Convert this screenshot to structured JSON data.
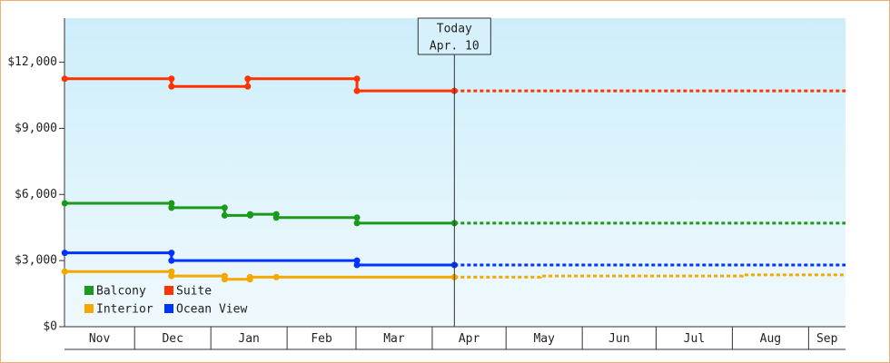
{
  "chart_data": {
    "type": "step-line",
    "xlim": [
      1.5,
      319
    ],
    "xticks": [
      {
        "value": 0,
        "label": "Nov"
      },
      {
        "value": 30,
        "label": "Dec"
      },
      {
        "value": 61,
        "label": "Jan"
      },
      {
        "value": 92,
        "label": "Feb"
      },
      {
        "value": 120,
        "label": "Mar"
      },
      {
        "value": 151,
        "label": "Apr"
      },
      {
        "value": 181,
        "label": "May"
      },
      {
        "value": 212,
        "label": "Jun"
      },
      {
        "value": 242,
        "label": "Jul"
      },
      {
        "value": 273,
        "label": "Aug"
      },
      {
        "value": 304,
        "label": "Sep"
      }
    ],
    "ylim": [
      0,
      14000
    ],
    "yticks": [
      {
        "value": 0,
        "label": "$0"
      },
      {
        "value": 3000,
        "label": "$3,000"
      },
      {
        "value": 6000,
        "label": "$6,000"
      },
      {
        "value": 9000,
        "label": "$9,000"
      },
      {
        "value": 12000,
        "label": "$12,000"
      }
    ],
    "annotation": {
      "x": 160,
      "lines": [
        "Today",
        "Apr. 10"
      ]
    },
    "series": [
      {
        "name": "Balcony",
        "color": "#1a9a1a",
        "x": [
          1.6,
          45,
          45,
          66.6,
          66.6,
          77,
          77,
          87.6,
          87.6,
          120.4,
          120.4,
          160
        ],
        "values": [
          5600,
          5600,
          5400,
          5400,
          5050,
          5050,
          5100,
          5100,
          4950,
          4950,
          4700,
          4700
        ],
        "projection_x": [
          160,
          319
        ],
        "projection": [
          4700,
          4700
        ]
      },
      {
        "name": "Suite",
        "color": "#ff3300",
        "x": [
          1.6,
          45,
          45,
          76,
          76,
          120.4,
          120.4,
          160
        ],
        "values": [
          11250,
          11250,
          10900,
          10900,
          11250,
          11250,
          10700,
          10700
        ],
        "projection_x": [
          160,
          319
        ],
        "projection": [
          10700,
          10700
        ]
      },
      {
        "name": "Interior",
        "color": "#f5a800",
        "x": [
          1.6,
          45,
          45,
          66.6,
          66.6,
          76.9,
          76.9,
          87.6,
          160
        ],
        "values": [
          2500,
          2500,
          2300,
          2300,
          2150,
          2150,
          2250,
          2250,
          2250
        ],
        "projection_x": [
          160,
          195,
          195,
          277,
          277,
          319
        ],
        "projection": [
          2250,
          2250,
          2300,
          2300,
          2350,
          2350
        ]
      },
      {
        "name": "Ocean View",
        "color": "#0033ff",
        "x": [
          1.6,
          45,
          45,
          120.4,
          120.4,
          160
        ],
        "values": [
          3350,
          3350,
          3000,
          3000,
          2800,
          2800
        ],
        "projection_x": [
          160,
          319
        ],
        "projection": [
          2800,
          2800
        ]
      }
    ],
    "legend": "bottom-left"
  }
}
